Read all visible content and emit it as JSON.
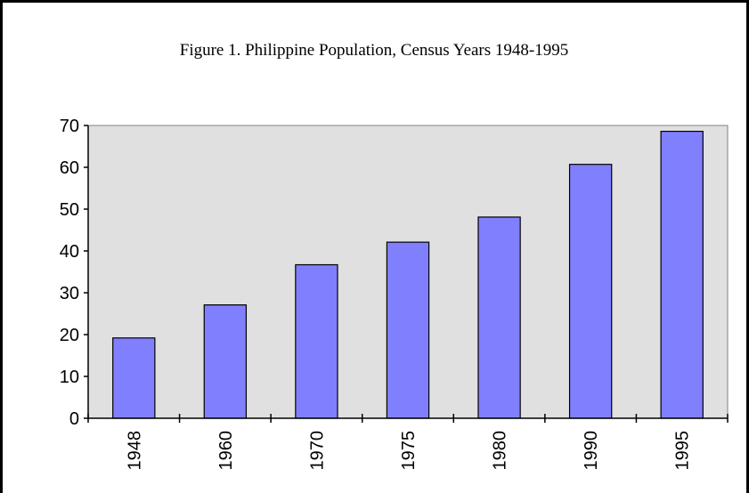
{
  "chart_data": {
    "type": "bar",
    "title": "Figure 1. Philippine Population, Census Years 1948-1995",
    "categories": [
      "1948",
      "1960",
      "1970",
      "1975",
      "1980",
      "1990",
      "1995"
    ],
    "values": [
      19.2,
      27.1,
      36.7,
      42.1,
      48.1,
      60.7,
      68.6
    ],
    "color": "#8080ff",
    "ylim": [
      0,
      70
    ],
    "yticks": [
      0,
      10,
      20,
      30,
      40,
      50,
      60,
      70
    ],
    "grid": false
  }
}
